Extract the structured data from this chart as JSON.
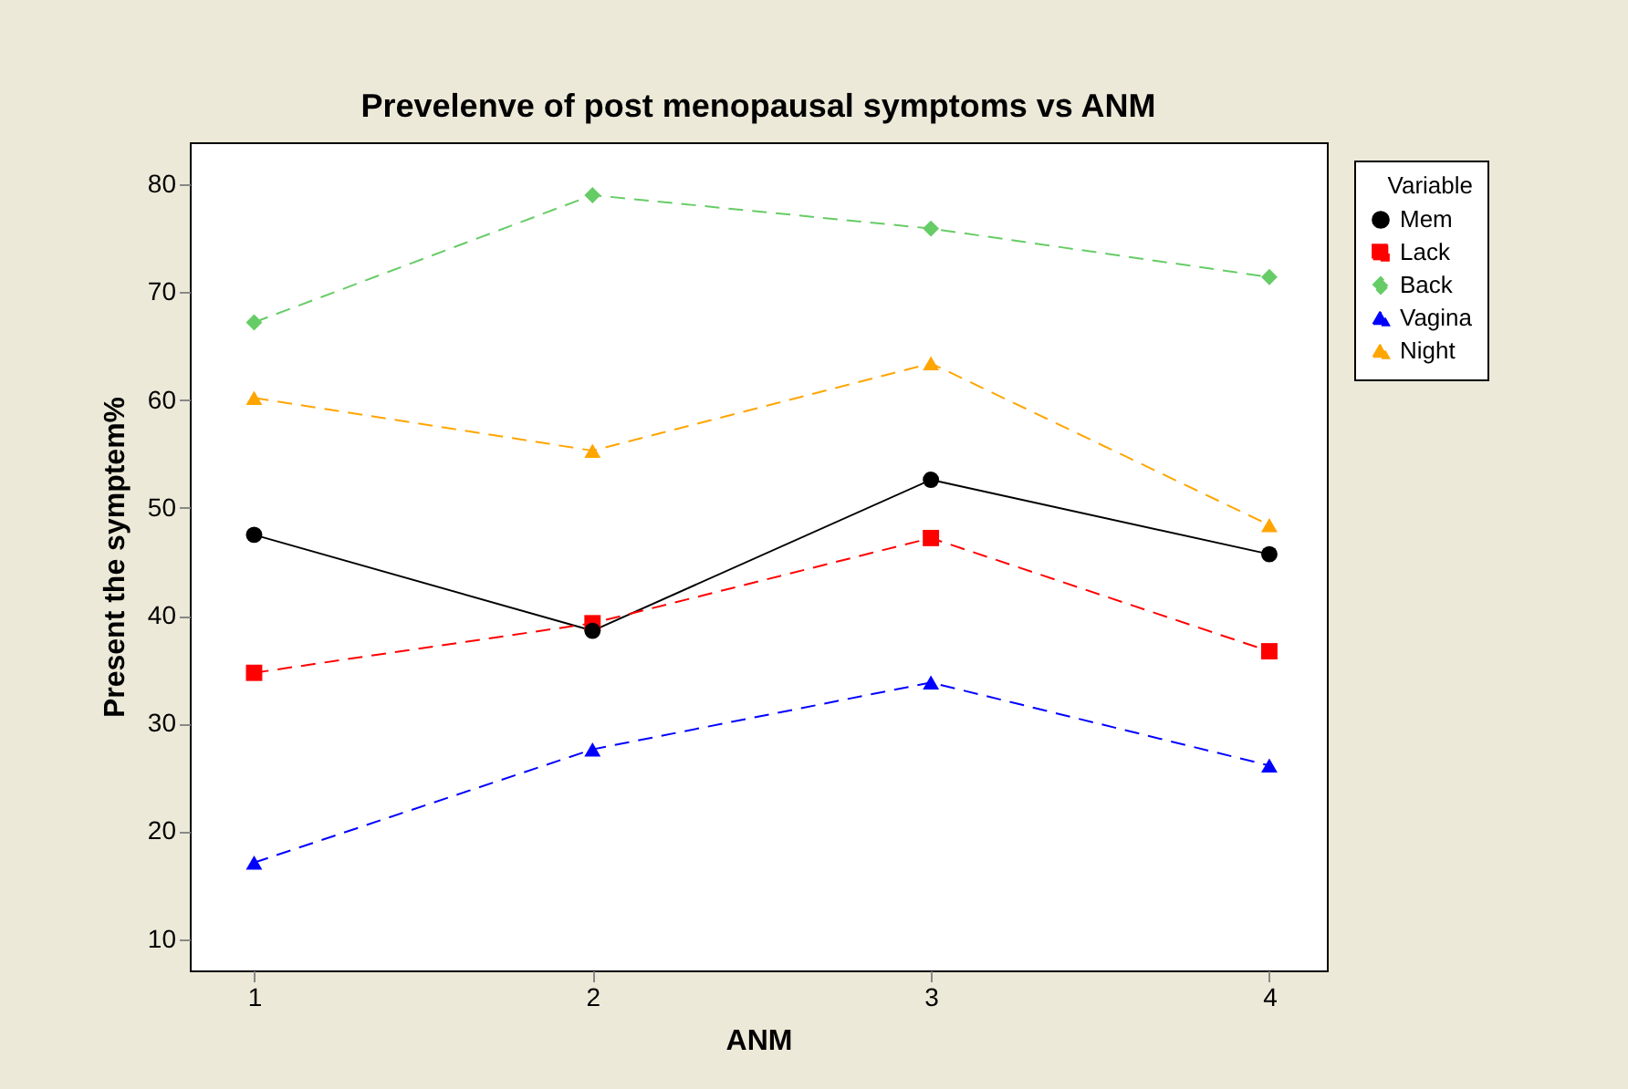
{
  "chart_data": {
    "type": "line",
    "title": "Prevelenve  of post menopausal symptoms vs ANM",
    "xlabel": "ANM",
    "ylabel": "Present the symptem%",
    "legend_title": "Variable",
    "legend": "right",
    "grid": false,
    "x": [
      1,
      2,
      3,
      4
    ],
    "xlim": [
      0.81,
      4.17
    ],
    "xticks": [
      1,
      2,
      3,
      4
    ],
    "ylim": [
      7.1,
      83.9
    ],
    "yticks": [
      10,
      20,
      30,
      40,
      50,
      60,
      70,
      80
    ],
    "series": [
      {
        "name": "Mem",
        "color": "#000000",
        "marker": "circle",
        "line_style": "solid",
        "values": [
          47.5,
          38.6,
          52.6,
          45.7
        ]
      },
      {
        "name": "Lack",
        "color": "#ff0000",
        "marker": "square",
        "line_style": "dashed",
        "values": [
          34.7,
          39.3,
          47.2,
          36.7
        ]
      },
      {
        "name": "Back",
        "color": "#66cc66",
        "marker": "diamond",
        "line_style": "dashed",
        "values": [
          67.2,
          79.0,
          75.9,
          71.4
        ]
      },
      {
        "name": "Vagina",
        "color": "#0000ff",
        "marker": "triangle",
        "line_style": "dashed",
        "values": [
          17.1,
          27.6,
          33.8,
          26.1
        ]
      },
      {
        "name": "Night",
        "color": "#ffa500",
        "marker": "triangle",
        "line_style": "dashed",
        "values": [
          60.2,
          55.3,
          63.4,
          48.4
        ]
      }
    ]
  }
}
